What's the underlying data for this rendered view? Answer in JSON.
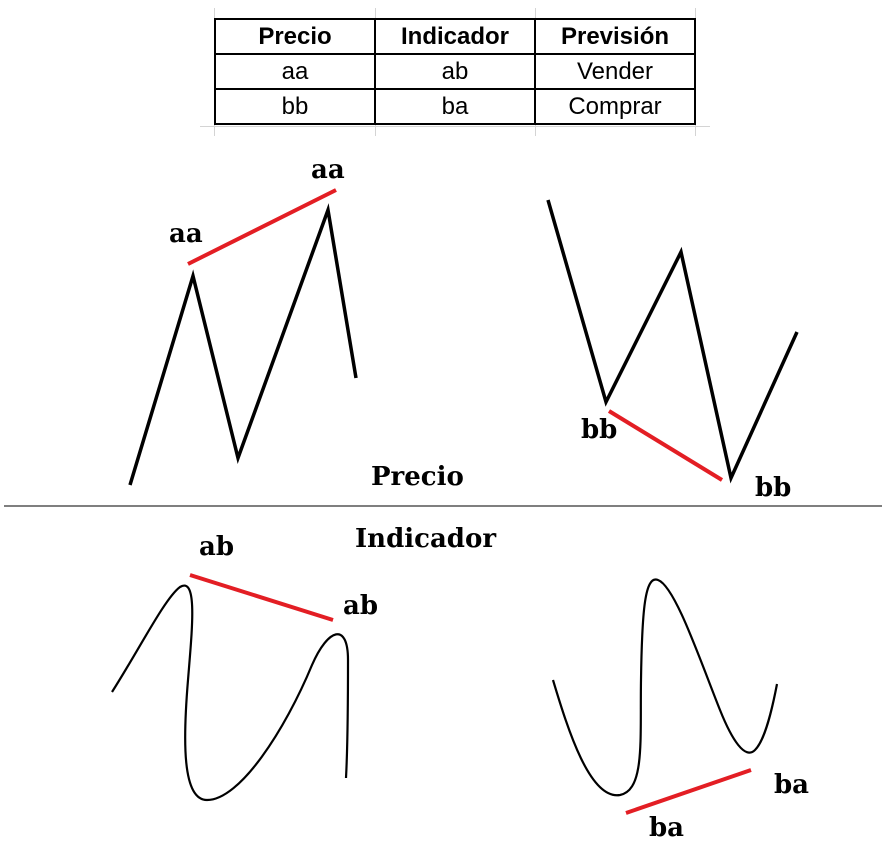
{
  "table": {
    "headers": [
      "Precio",
      "Indicador",
      "Previsión"
    ],
    "rows": [
      [
        "aa",
        "ab",
        "Vender"
      ],
      [
        "bb",
        "ba",
        "Comprar"
      ]
    ]
  },
  "sections": {
    "price_title": "Precio",
    "indicator_title": "Indicador"
  },
  "labels": {
    "price_left_peak1": "aa",
    "price_left_peak2": "aa",
    "price_right_trough1": "bb",
    "price_right_trough2": "bb",
    "ind_left_peak1": "ab",
    "ind_left_peak2": "ab",
    "ind_right_trough1": "ba",
    "ind_right_trough2": "ba"
  },
  "colors": {
    "trendline": "#e31e24",
    "price_line": "#000000",
    "divider": "#555555"
  }
}
